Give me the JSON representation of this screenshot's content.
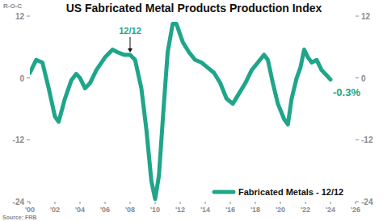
{
  "chart_data": {
    "type": "line",
    "title": "US Fabricated Metal Products Production Index",
    "y_label": "R-O-C",
    "source": "Source: FRB",
    "x": [
      2000.0,
      2000.5,
      2001.0,
      2001.5,
      2002.0,
      2002.3,
      2002.8,
      2003.3,
      2003.7,
      2004.0,
      2004.4,
      2004.8,
      2005.3,
      2006.0,
      2006.6,
      2007.0,
      2007.5,
      2008.0,
      2008.4,
      2008.9,
      2009.3,
      2009.7,
      2010.0,
      2010.3,
      2010.7,
      2011.0,
      2011.4,
      2011.7,
      2012.2,
      2012.7,
      2013.2,
      2013.7,
      2014.2,
      2014.7,
      2015.2,
      2015.7,
      2016.2,
      2016.7,
      2017.2,
      2017.7,
      2018.2,
      2018.7,
      2019.0,
      2019.4,
      2019.8,
      2020.3,
      2020.6,
      2020.9,
      2021.3,
      2021.6,
      2021.9,
      2022.2,
      2022.5,
      2022.9,
      2023.3,
      2023.7,
      2024.0
    ],
    "series": [
      {
        "name": "Fabricated Metals - 12/12",
        "color": "#1fa58a",
        "values": [
          1.0,
          3.5,
          3.0,
          -2.0,
          -7.5,
          -8.5,
          -4.0,
          -0.5,
          0.8,
          0.0,
          -2.0,
          -1.0,
          1.5,
          4.0,
          5.5,
          5.0,
          4.5,
          4.5,
          3.5,
          -2.0,
          -10.0,
          -20.0,
          -23.5,
          -19.0,
          -5.0,
          5.0,
          10.5,
          10.5,
          7.0,
          5.0,
          3.5,
          3.0,
          2.0,
          1.0,
          -1.0,
          -4.0,
          -5.0,
          -3.0,
          -1.0,
          1.5,
          3.0,
          4.5,
          3.5,
          -1.0,
          -5.0,
          -8.0,
          -9.0,
          -4.0,
          0.0,
          2.0,
          5.5,
          4.0,
          3.0,
          3.5,
          1.5,
          0.5,
          -0.3
        ]
      }
    ],
    "xlim": [
      2000,
      2026
    ],
    "xticks": [
      {
        "value": 2000,
        "label": "'00"
      },
      {
        "value": 2002,
        "label": "'02"
      },
      {
        "value": 2004,
        "label": "'04"
      },
      {
        "value": 2006,
        "label": "'06"
      },
      {
        "value": 2008,
        "label": "'08"
      },
      {
        "value": 2010,
        "label": "'10"
      },
      {
        "value": 2012,
        "label": "'12"
      },
      {
        "value": 2014,
        "label": "'14"
      },
      {
        "value": 2016,
        "label": "'16"
      },
      {
        "value": 2018,
        "label": "'18"
      },
      {
        "value": 2020,
        "label": "'20"
      },
      {
        "value": 2022,
        "label": "'22"
      },
      {
        "value": 2024,
        "label": "'24"
      },
      {
        "value": 2026,
        "label": "'26"
      }
    ],
    "ylim": [
      -24,
      12
    ],
    "yticks": [
      -24,
      -12,
      0,
      12
    ],
    "y2lim": [
      -24,
      12
    ],
    "y2ticks": [
      -24,
      -12,
      0,
      12
    ],
    "grid": false,
    "legend": "lower right",
    "annotations": [
      {
        "text": "12/12",
        "x": 2008.0,
        "y": 4.5
      },
      {
        "text": "-0.3%",
        "x": 2024.0,
        "y": -0.3
      }
    ]
  }
}
